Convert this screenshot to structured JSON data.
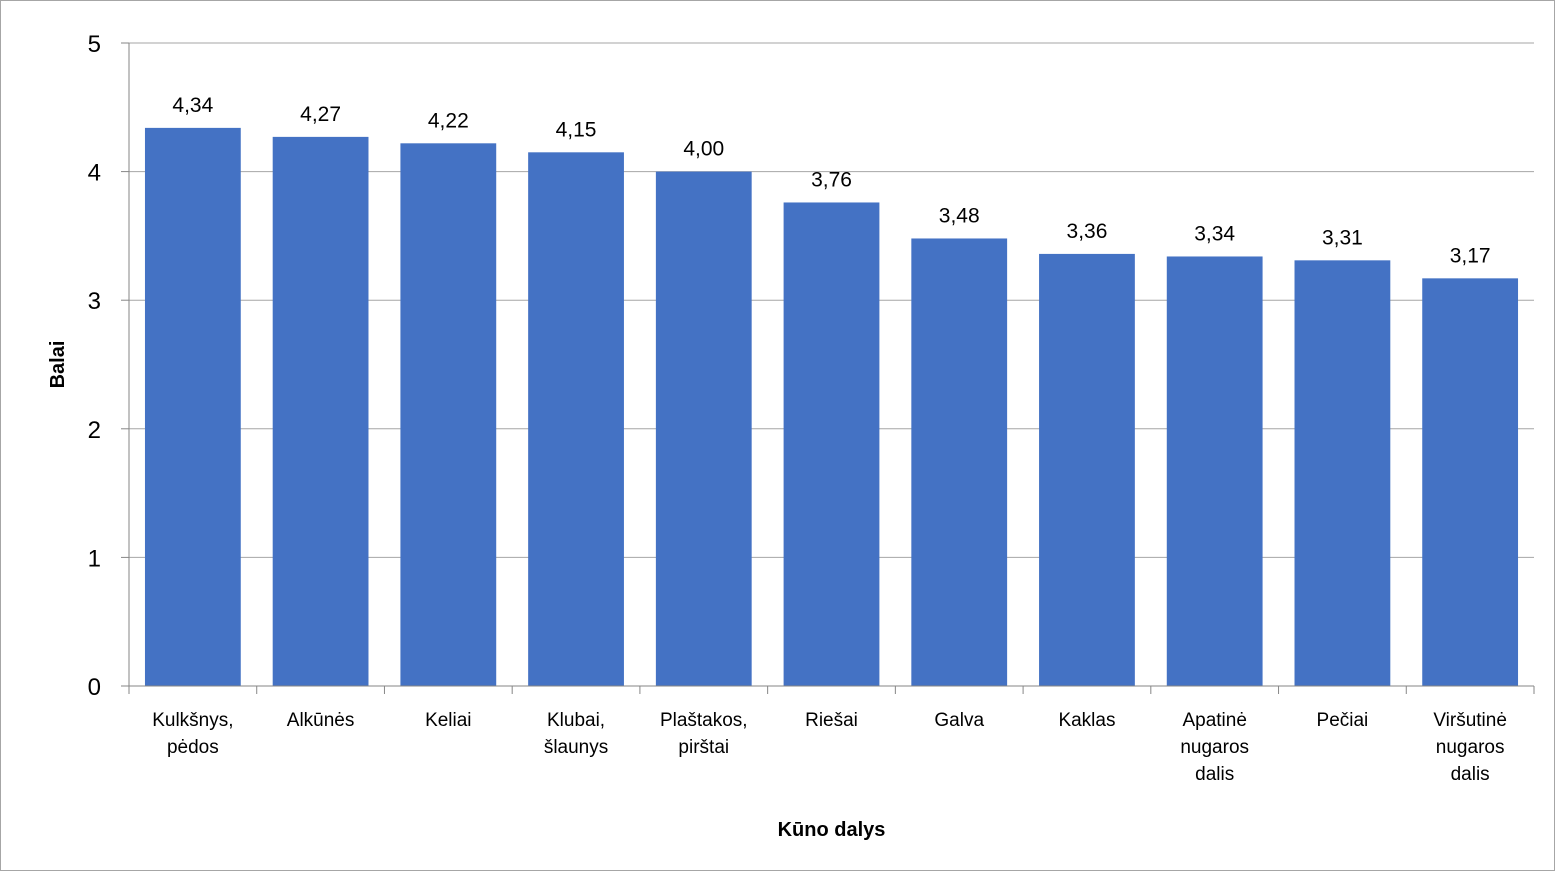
{
  "chart_data": {
    "type": "bar",
    "title": "",
    "xlabel": "Kūno dalys",
    "ylabel": "Balai",
    "ylim": [
      0,
      5
    ],
    "yticks": [
      0,
      1,
      2,
      3,
      4,
      5
    ],
    "ytick_labels": [
      "0",
      "1",
      "2",
      "3",
      "4",
      "5"
    ],
    "grid": true,
    "legend": "none",
    "bar_color": "#4472c4",
    "categories": [
      [
        "Kulkšnys,",
        "pėdos"
      ],
      [
        "Alkūnės"
      ],
      [
        "Keliai"
      ],
      [
        "Klubai,",
        "šlaunys"
      ],
      [
        "Plaštakos,",
        "pirštai"
      ],
      [
        "Riešai"
      ],
      [
        "Galva"
      ],
      [
        "Kaklas"
      ],
      [
        "Apatinė",
        "nugaros",
        "dalis"
      ],
      [
        "Pečiai"
      ],
      [
        "Viršutinė",
        "nugaros",
        "dalis"
      ]
    ],
    "values": [
      4.34,
      4.27,
      4.22,
      4.15,
      4.0,
      3.76,
      3.48,
      3.36,
      3.34,
      3.31,
      3.17
    ],
    "data_labels": [
      "4,34",
      "4,27",
      "4,22",
      "4,15",
      "4,00",
      "3,76",
      "3,48",
      "3,36",
      "3,34",
      "3,31",
      "3,17"
    ]
  }
}
